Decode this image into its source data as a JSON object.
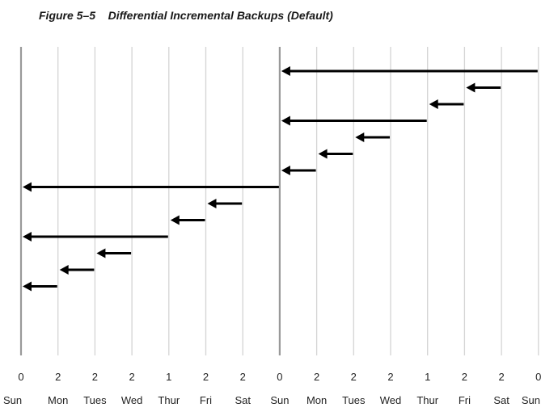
{
  "figure": {
    "caption": "Figure 5–5    Differential Incremental Backups (Default)"
  },
  "timeline": {
    "backup_levels": [
      "0",
      "2",
      "2",
      "2",
      "1",
      "2",
      "2",
      "0",
      "2",
      "2",
      "2",
      "1",
      "2",
      "2",
      "0"
    ],
    "days": [
      "Sun",
      "Mon",
      "Tues",
      "Wed",
      "Thur",
      "Fri",
      "Sat",
      "Sun",
      "Mon",
      "Tues",
      "Wed",
      "Thur",
      "Fri",
      "Sat",
      "Sun"
    ]
  },
  "backups": [
    {
      "from_day": 14,
      "to_day": 7
    },
    {
      "from_day": 13,
      "to_day": 12
    },
    {
      "from_day": 12,
      "to_day": 11
    },
    {
      "from_day": 11,
      "to_day": 7
    },
    {
      "from_day": 10,
      "to_day": 9
    },
    {
      "from_day": 9,
      "to_day": 8
    },
    {
      "from_day": 8,
      "to_day": 7
    },
    {
      "from_day": 7,
      "to_day": 0
    },
    {
      "from_day": 6,
      "to_day": 5
    },
    {
      "from_day": 5,
      "to_day": 4
    },
    {
      "from_day": 4,
      "to_day": 0
    },
    {
      "from_day": 3,
      "to_day": 2
    },
    {
      "from_day": 2,
      "to_day": 1
    },
    {
      "from_day": 1,
      "to_day": 0
    }
  ],
  "colors": {
    "gridline": "#d4d4d4",
    "full_backup_line": "#999999",
    "arrow": "#000000"
  }
}
